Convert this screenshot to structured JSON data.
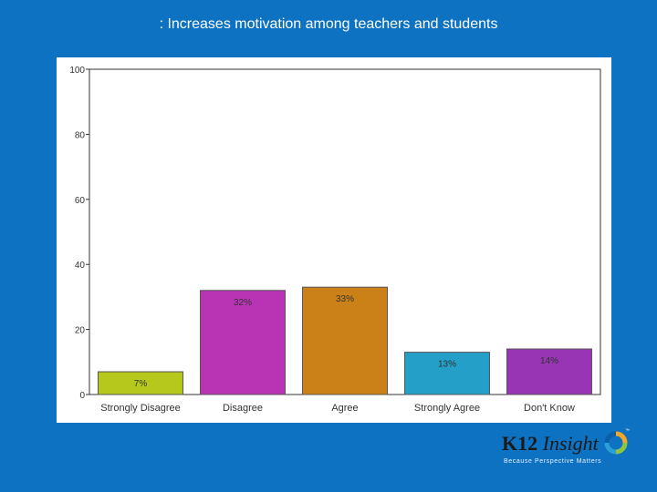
{
  "slide": {
    "title": ": Increases motivation among teachers and students"
  },
  "logo": {
    "name_k12": "K12",
    "name_insight": "Insight",
    "trademark": "™",
    "tagline": "Because Perspective Matters"
  },
  "colors": {
    "background": "#0d72c2"
  },
  "chart_data": {
    "type": "bar",
    "title": "",
    "xlabel": "",
    "ylabel": "",
    "ylim": [
      0,
      100
    ],
    "yticks": [
      0,
      20,
      40,
      60,
      80,
      100
    ],
    "grid": false,
    "categories": [
      "Strongly Disagree",
      "Disagree",
      "Agree",
      "Strongly Agree",
      "Don't Know"
    ],
    "values": [
      7,
      32,
      33,
      13,
      14
    ],
    "data_labels": [
      "7%",
      "32%",
      "33%",
      "13%",
      "14%"
    ],
    "colors": [
      "#b5c91c",
      "#b834b4",
      "#cc8118",
      "#249fc8",
      "#9735b4"
    ]
  }
}
